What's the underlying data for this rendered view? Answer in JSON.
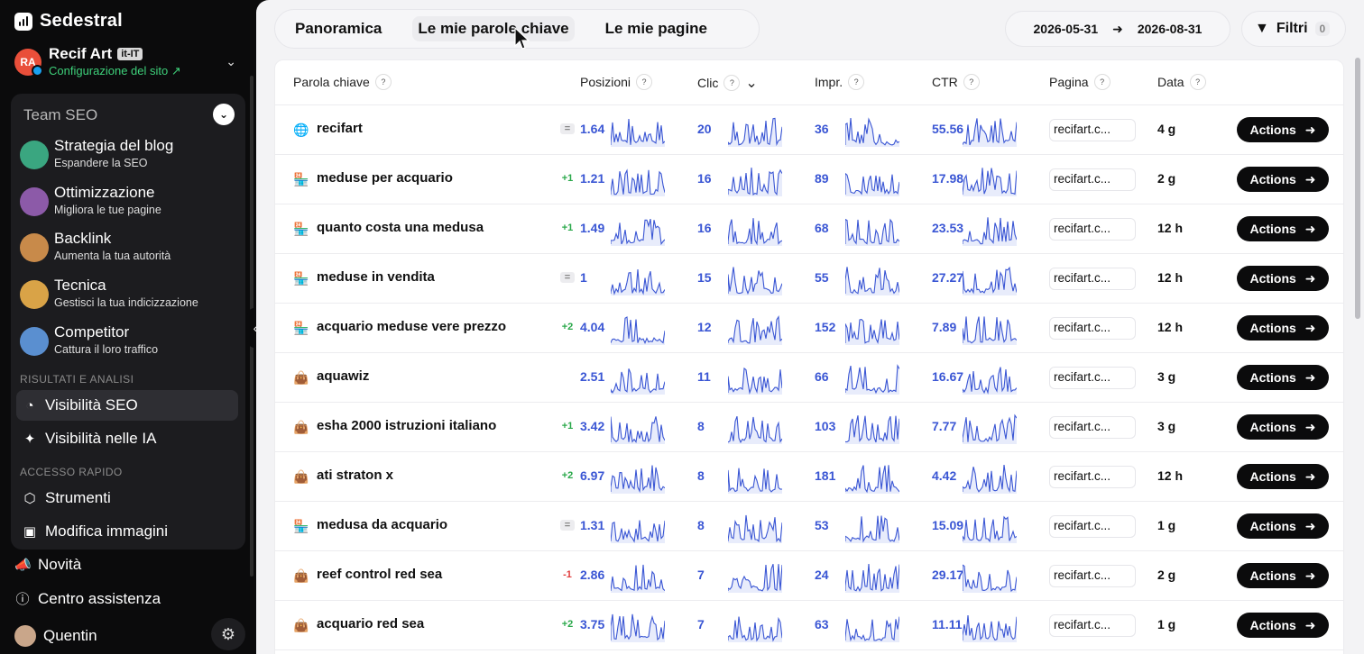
{
  "app": {
    "name": "Sedestral"
  },
  "site": {
    "initials": "RA",
    "name": "Recif Art",
    "lang": "it-IT",
    "config_label": "Configurazione del sito ↗"
  },
  "team": {
    "title": "Team SEO",
    "agents": [
      {
        "title": "Strategia del blog",
        "subtitle": "Espandere la SEO",
        "color": "#3aa680"
      },
      {
        "title": "Ottimizzazione",
        "subtitle": "Migliora le tue pagine",
        "color": "#8c5aa8"
      },
      {
        "title": "Backlink",
        "subtitle": "Aumenta la tua autorità",
        "color": "#c88a4a"
      },
      {
        "title": "Tecnica",
        "subtitle": "Gestisci la tua indicizzazione",
        "color": "#d9a347"
      },
      {
        "title": "Competitor",
        "subtitle": "Cattura il loro traffico",
        "color": "#5a8fd0"
      }
    ]
  },
  "sections": {
    "results": "RISULTATI E ANALISI",
    "quick": "ACCESSO RAPIDO"
  },
  "nav": {
    "seo_visibility": "Visibilità SEO",
    "ai_visibility": "Visibilità nelle IA",
    "tools": "Strumenti",
    "edit_images": "Modifica immagini"
  },
  "footer": {
    "news": "Novità",
    "help": "Centro assistenza",
    "user": "Quentin"
  },
  "tabs": [
    "Panoramica",
    "Le mie parole chiave",
    "Le mie pagine"
  ],
  "date_range": {
    "from": "2026-05-31",
    "to": "2026-08-31"
  },
  "filters": {
    "label": "Filtri",
    "count": "0"
  },
  "table": {
    "headers": {
      "keyword": "Parola chiave",
      "positions": "Posizioni",
      "clicks": "Clic",
      "impressions": "Impr.",
      "ctr": "CTR",
      "page": "Pagina",
      "date": "Data"
    },
    "help_mark": "?",
    "action_label": "Actions",
    "rows": [
      {
        "icon": "globe",
        "keyword": "recifart",
        "delta": "=",
        "delta_type": "eq",
        "position": "1.64",
        "clicks": "20",
        "impressions": "36",
        "ctr": "55.56",
        "page": "recifart.c...",
        "date": "4 g"
      },
      {
        "icon": "store",
        "keyword": "meduse per acquario",
        "delta": "+1",
        "delta_type": "up",
        "position": "1.21",
        "clicks": "16",
        "impressions": "89",
        "ctr": "17.98",
        "page": "recifart.c...",
        "date": "2 g"
      },
      {
        "icon": "store",
        "keyword": "quanto costa una medusa",
        "delta": "+1",
        "delta_type": "up",
        "position": "1.49",
        "clicks": "16",
        "impressions": "68",
        "ctr": "23.53",
        "page": "recifart.c...",
        "date": "12 h"
      },
      {
        "icon": "store",
        "keyword": "meduse in vendita",
        "delta": "=",
        "delta_type": "eq",
        "position": "1",
        "clicks": "15",
        "impressions": "55",
        "ctr": "27.27",
        "page": "recifart.c...",
        "date": "12 h"
      },
      {
        "icon": "store",
        "keyword": "acquario meduse vere prezzo",
        "delta": "+2",
        "delta_type": "up",
        "position": "4.04",
        "clicks": "12",
        "impressions": "152",
        "ctr": "7.89",
        "page": "recifart.c...",
        "date": "12 h"
      },
      {
        "icon": "bag",
        "keyword": "aquawiz",
        "delta": "",
        "delta_type": "none",
        "position": "2.51",
        "clicks": "11",
        "impressions": "66",
        "ctr": "16.67",
        "page": "recifart.c...",
        "date": "3 g"
      },
      {
        "icon": "bag",
        "keyword": "esha 2000 istruzioni italiano",
        "delta": "+1",
        "delta_type": "up",
        "position": "3.42",
        "clicks": "8",
        "impressions": "103",
        "ctr": "7.77",
        "page": "recifart.c...",
        "date": "3 g"
      },
      {
        "icon": "bag",
        "keyword": "ati straton x",
        "delta": "+2",
        "delta_type": "up",
        "position": "6.97",
        "clicks": "8",
        "impressions": "181",
        "ctr": "4.42",
        "page": "recifart.c...",
        "date": "12 h"
      },
      {
        "icon": "store",
        "keyword": "medusa da acquario",
        "delta": "=",
        "delta_type": "eq",
        "position": "1.31",
        "clicks": "8",
        "impressions": "53",
        "ctr": "15.09",
        "page": "recifart.c...",
        "date": "1 g"
      },
      {
        "icon": "bag",
        "keyword": "reef control red sea",
        "delta": "-1",
        "delta_type": "down",
        "position": "2.86",
        "clicks": "7",
        "impressions": "24",
        "ctr": "29.17",
        "page": "recifart.c...",
        "date": "2 g"
      },
      {
        "icon": "bag",
        "keyword": "acquario red sea",
        "delta": "+2",
        "delta_type": "up",
        "position": "3.75",
        "clicks": "7",
        "impressions": "63",
        "ctr": "11.11",
        "page": "recifart.c...",
        "date": "1 g"
      }
    ]
  },
  "colors": {
    "accent_blue": "#3a56d4",
    "success_green": "#2aa84a",
    "danger_red": "#e03b3b",
    "sidebar_bg": "#0b0b0c"
  }
}
